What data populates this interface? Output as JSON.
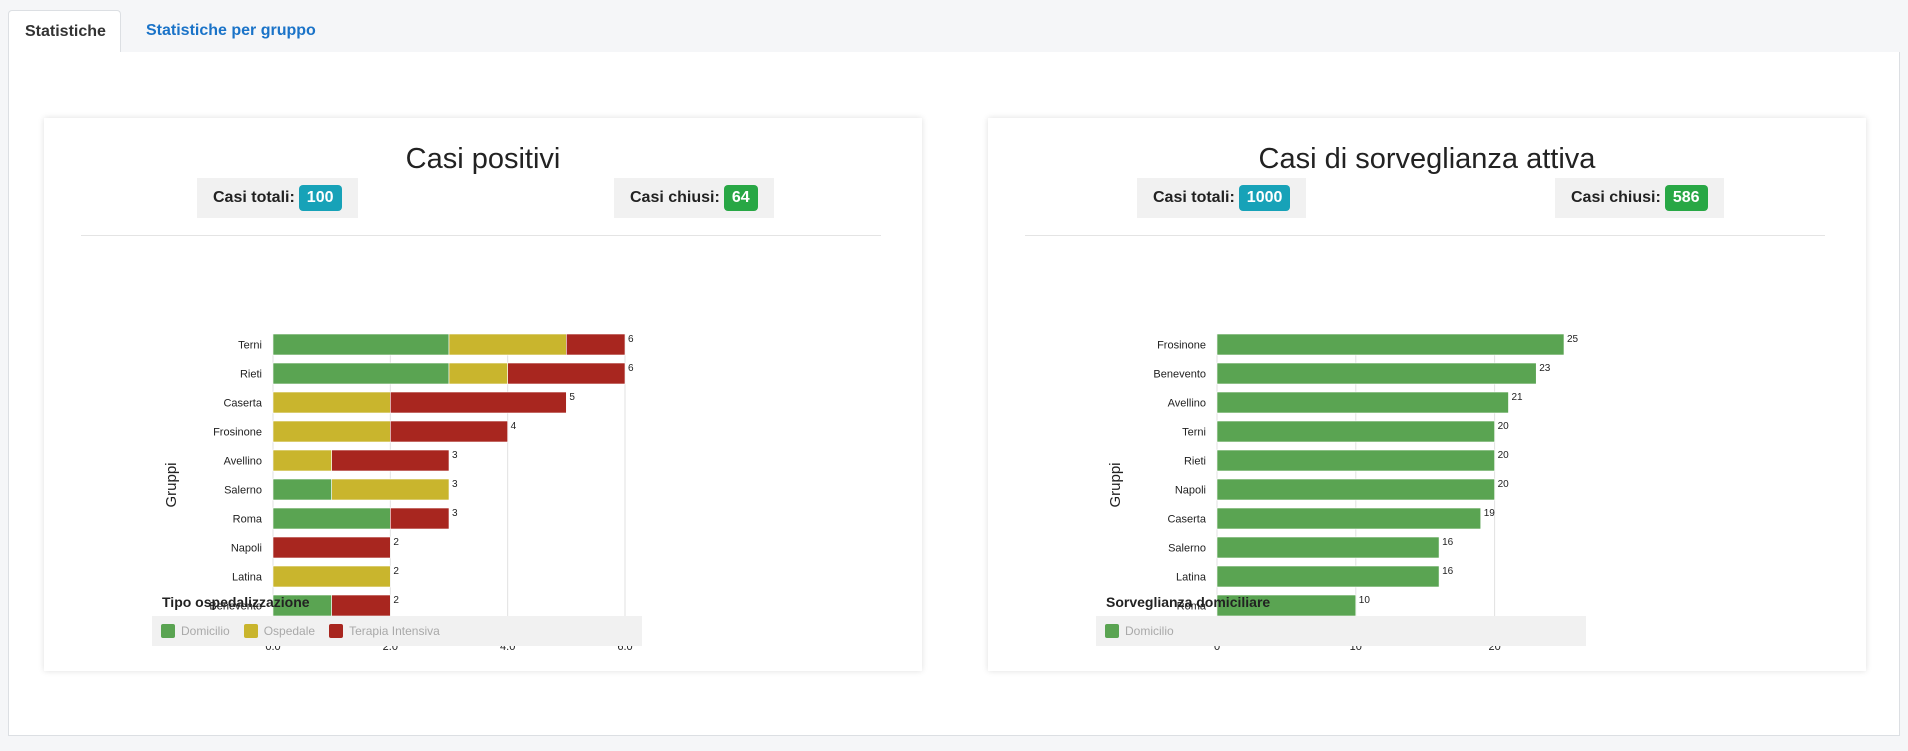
{
  "tabs": [
    {
      "label": "Statistiche",
      "active": true
    },
    {
      "label": "Statistiche per gruppo",
      "active": false
    }
  ],
  "cards": [
    {
      "title": "Casi positivi",
      "totals_label": "Casi totali:",
      "totals_value": "100",
      "closed_label": "Casi chiusi:",
      "closed_value": "64",
      "legend_title": "Tipo ospedalizzazione",
      "legend": [
        {
          "name": "Domicilio",
          "color": "#5aa452"
        },
        {
          "name": "Ospedale",
          "color": "#c9b52d"
        },
        {
          "name": "Terapia Intensiva",
          "color": "#a8261f"
        }
      ]
    },
    {
      "title": "Casi di sorveglianza attiva",
      "totals_label": "Casi totali:",
      "totals_value": "1000",
      "closed_label": "Casi chiusi:",
      "closed_value": "586",
      "legend_title": "Sorveglianza domiciliare",
      "legend": [
        {
          "name": "Domicilio",
          "color": "#5aa452"
        }
      ]
    }
  ],
  "chart_data": [
    {
      "type": "bar",
      "orientation": "horizontal",
      "stacked": true,
      "ylabel": "Gruppi",
      "xlim": [
        0,
        6
      ],
      "xticks": [
        "0.0",
        "2.0",
        "4.0",
        "6.0"
      ],
      "xtick_values": [
        0,
        2,
        4,
        6
      ],
      "categories": [
        "Terni",
        "Rieti",
        "Caserta",
        "Frosinone",
        "Avellino",
        "Salerno",
        "Roma",
        "Napoli",
        "Latina",
        "Benevento"
      ],
      "series": [
        {
          "name": "Domicilio",
          "color": "#5aa452",
          "values": [
            3,
            3,
            0,
            0,
            0,
            1,
            2,
            0,
            0,
            1
          ]
        },
        {
          "name": "Ospedale",
          "color": "#c9b52d",
          "values": [
            2,
            1,
            2,
            2,
            1,
            2,
            0,
            0,
            2,
            0
          ]
        },
        {
          "name": "Terapia Intensiva",
          "color": "#a8261f",
          "values": [
            1,
            2,
            3,
            2,
            2,
            0,
            1,
            2,
            0,
            1
          ]
        }
      ],
      "totals": [
        "6",
        "6",
        "5",
        "4",
        "3",
        "3",
        "3",
        "2",
        "2",
        "2"
      ]
    },
    {
      "type": "bar",
      "orientation": "horizontal",
      "stacked": false,
      "ylabel": "Gruppi",
      "xlim": [
        0,
        25
      ],
      "xticks": [
        "0",
        "10",
        "20"
      ],
      "xtick_values": [
        0,
        10,
        20
      ],
      "categories": [
        "Frosinone",
        "Benevento",
        "Avellino",
        "Terni",
        "Rieti",
        "Napoli",
        "Caserta",
        "Salerno",
        "Latina",
        "Roma"
      ],
      "series": [
        {
          "name": "Domicilio",
          "color": "#5aa452",
          "values": [
            25,
            23,
            21,
            20,
            20,
            20,
            19,
            16,
            16,
            10
          ]
        }
      ],
      "totals": [
        "25",
        "23",
        "21",
        "20",
        "20",
        "20",
        "19",
        "16",
        "16",
        "10"
      ]
    }
  ]
}
